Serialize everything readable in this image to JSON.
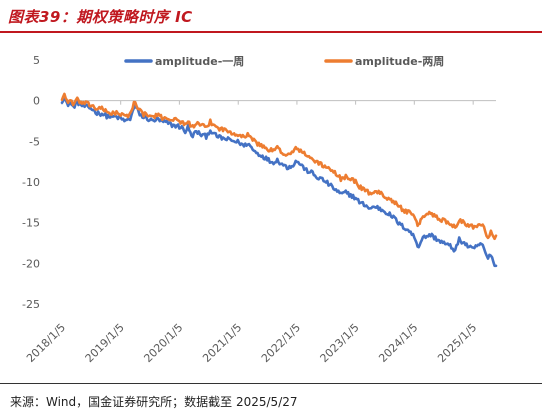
{
  "figure": {
    "title": "图表39：期权策略时序 IC",
    "source": "来源：Wind，国金证券研究所；数据截至 2025/5/27"
  },
  "colors": {
    "accent": "#c0181f",
    "series_one_week": "#4472c4",
    "series_two_week": "#ed7d31",
    "axis": "#bfbfbf",
    "tick_text": "#595959"
  },
  "chart_data": {
    "type": "line",
    "title": "",
    "xlabel": "",
    "ylabel": "",
    "grid": false,
    "legend_position": "top-right",
    "x_axis_crosses_y_at": 0,
    "ylim": [
      -25,
      5
    ],
    "yticks": [
      5,
      0,
      -5,
      -10,
      -15,
      -20,
      -25
    ],
    "xlim": [
      "2018-01-05",
      "2025-05-27"
    ],
    "xticks": [
      "2018/1/5",
      "2019/1/5",
      "2020/1/5",
      "2021/1/5",
      "2022/1/5",
      "2023/1/5",
      "2024/1/5",
      "2025/1/5"
    ],
    "xtick_dates": [
      "2018-01-05",
      "2019-01-05",
      "2020-01-05",
      "2021-01-05",
      "2022-01-05",
      "2023-01-05",
      "2024-01-05",
      "2025-01-05"
    ],
    "series": [
      {
        "name": "amplitude-一周",
        "color": "#4472c4",
        "points": [
          [
            "2018-01-05",
            0.0
          ],
          [
            "2018-01-20",
            0.5
          ],
          [
            "2018-02-05",
            -0.5
          ],
          [
            "2018-02-25",
            -0.3
          ],
          [
            "2018-03-15",
            -0.8
          ],
          [
            "2018-04-10",
            -0.2
          ],
          [
            "2018-05-10",
            -0.6
          ],
          [
            "2018-06-10",
            -0.8
          ],
          [
            "2018-07-10",
            -1.0
          ],
          [
            "2018-08-10",
            -1.5
          ],
          [
            "2018-09-10",
            -1.6
          ],
          [
            "2018-10-10",
            -1.9
          ],
          [
            "2018-11-10",
            -2.0
          ],
          [
            "2018-12-10",
            -2.0
          ],
          [
            "2019-01-05",
            -2.2
          ],
          [
            "2019-02-05",
            -2.5
          ],
          [
            "2019-03-05",
            -2.2
          ],
          [
            "2019-04-05",
            -0.5
          ],
          [
            "2019-04-25",
            -1.4
          ],
          [
            "2019-05-20",
            -2.0
          ],
          [
            "2019-06-20",
            -2.2
          ],
          [
            "2019-07-20",
            -2.5
          ],
          [
            "2019-08-20",
            -2.3
          ],
          [
            "2019-09-20",
            -2.6
          ],
          [
            "2019-10-20",
            -2.7
          ],
          [
            "2019-11-20",
            -3.0
          ],
          [
            "2019-12-20",
            -3.1
          ],
          [
            "2020-01-20",
            -3.3
          ],
          [
            "2020-02-10",
            -3.8
          ],
          [
            "2020-02-28",
            -3.2
          ],
          [
            "2020-03-20",
            -4.4
          ],
          [
            "2020-04-20",
            -3.8
          ],
          [
            "2020-05-20",
            -4.2
          ],
          [
            "2020-06-20",
            -4.4
          ],
          [
            "2020-07-15",
            -3.6
          ],
          [
            "2020-08-10",
            -4.2
          ],
          [
            "2020-09-10",
            -4.5
          ],
          [
            "2020-10-10",
            -4.7
          ],
          [
            "2020-11-10",
            -4.8
          ],
          [
            "2020-12-10",
            -5.0
          ],
          [
            "2021-01-10",
            -5.1
          ],
          [
            "2021-02-10",
            -5.6
          ],
          [
            "2021-03-05",
            -5.2
          ],
          [
            "2021-04-05",
            -6.0
          ],
          [
            "2021-05-05",
            -6.5
          ],
          [
            "2021-06-05",
            -6.8
          ],
          [
            "2021-07-05",
            -7.2
          ],
          [
            "2021-08-05",
            -7.6
          ],
          [
            "2021-09-05",
            -7.3
          ],
          [
            "2021-10-05",
            -7.8
          ],
          [
            "2021-11-05",
            -8.2
          ],
          [
            "2021-12-05",
            -8.0
          ],
          [
            "2022-01-05",
            -7.4
          ],
          [
            "2022-02-05",
            -8.0
          ],
          [
            "2022-03-05",
            -8.6
          ],
          [
            "2022-04-05",
            -8.8
          ],
          [
            "2022-05-05",
            -9.4
          ],
          [
            "2022-06-05",
            -9.6
          ],
          [
            "2022-07-05",
            -10.0
          ],
          [
            "2022-08-05",
            -10.5
          ],
          [
            "2022-09-05",
            -11.0
          ],
          [
            "2022-10-05",
            -11.5
          ],
          [
            "2022-11-05",
            -11.3
          ],
          [
            "2022-12-05",
            -11.6
          ],
          [
            "2023-01-05",
            -12.0
          ],
          [
            "2023-02-05",
            -12.6
          ],
          [
            "2023-03-05",
            -12.8
          ],
          [
            "2023-04-05",
            -13.3
          ],
          [
            "2023-05-05",
            -13.0
          ],
          [
            "2023-06-05",
            -13.3
          ],
          [
            "2023-07-05",
            -13.6
          ],
          [
            "2023-08-05",
            -14.0
          ],
          [
            "2023-09-05",
            -14.5
          ],
          [
            "2023-10-05",
            -15.2
          ],
          [
            "2023-11-05",
            -15.6
          ],
          [
            "2023-12-05",
            -16.0
          ],
          [
            "2024-01-05",
            -16.8
          ],
          [
            "2024-02-01",
            -18.0
          ],
          [
            "2024-02-20",
            -17.0
          ],
          [
            "2024-03-15",
            -16.7
          ],
          [
            "2024-04-15",
            -16.5
          ],
          [
            "2024-05-15",
            -16.9
          ],
          [
            "2024-06-15",
            -17.3
          ],
          [
            "2024-07-15",
            -17.6
          ],
          [
            "2024-08-15",
            -17.9
          ],
          [
            "2024-09-15",
            -18.4
          ],
          [
            "2024-10-10",
            -17.1
          ],
          [
            "2024-11-10",
            -17.5
          ],
          [
            "2024-12-10",
            -18.0
          ],
          [
            "2025-01-05",
            -18.3
          ],
          [
            "2025-02-05",
            -17.7
          ],
          [
            "2025-03-05",
            -17.8
          ],
          [
            "2025-04-07",
            -19.5
          ],
          [
            "2025-04-25",
            -18.8
          ],
          [
            "2025-05-10",
            -19.8
          ],
          [
            "2025-05-27",
            -20.3
          ]
        ]
      },
      {
        "name": "amplitude-两周",
        "color": "#ed7d31",
        "points": [
          [
            "2018-01-05",
            0.2
          ],
          [
            "2018-01-20",
            0.8
          ],
          [
            "2018-02-05",
            -0.1
          ],
          [
            "2018-02-25",
            0.1
          ],
          [
            "2018-03-15",
            -0.5
          ],
          [
            "2018-04-10",
            0.1
          ],
          [
            "2018-05-10",
            -0.3
          ],
          [
            "2018-06-10",
            -0.4
          ],
          [
            "2018-07-10",
            -0.6
          ],
          [
            "2018-08-10",
            -1.0
          ],
          [
            "2018-09-10",
            -1.0
          ],
          [
            "2018-10-10",
            -1.4
          ],
          [
            "2018-11-10",
            -1.5
          ],
          [
            "2018-12-10",
            -1.5
          ],
          [
            "2019-01-05",
            -1.7
          ],
          [
            "2019-02-05",
            -2.0
          ],
          [
            "2019-03-05",
            -1.6
          ],
          [
            "2019-04-05",
            0.0
          ],
          [
            "2019-04-25",
            -1.0
          ],
          [
            "2019-05-20",
            -1.6
          ],
          [
            "2019-06-20",
            -1.8
          ],
          [
            "2019-07-20",
            -2.0
          ],
          [
            "2019-08-20",
            -1.8
          ],
          [
            "2019-09-20",
            -2.1
          ],
          [
            "2019-10-20",
            -2.1
          ],
          [
            "2019-11-20",
            -2.3
          ],
          [
            "2019-12-20",
            -2.4
          ],
          [
            "2020-01-20",
            -2.6
          ],
          [
            "2020-02-10",
            -3.0
          ],
          [
            "2020-02-28",
            -2.3
          ],
          [
            "2020-03-20",
            -3.4
          ],
          [
            "2020-04-20",
            -2.8
          ],
          [
            "2020-05-20",
            -3.1
          ],
          [
            "2020-06-20",
            -3.3
          ],
          [
            "2020-07-15",
            -2.6
          ],
          [
            "2020-08-10",
            -3.1
          ],
          [
            "2020-09-10",
            -3.4
          ],
          [
            "2020-10-10",
            -3.6
          ],
          [
            "2020-11-10",
            -3.8
          ],
          [
            "2020-12-10",
            -4.0
          ],
          [
            "2021-01-10",
            -4.1
          ],
          [
            "2021-02-10",
            -4.6
          ],
          [
            "2021-03-05",
            -4.0
          ],
          [
            "2021-04-05",
            -4.8
          ],
          [
            "2021-05-05",
            -5.3
          ],
          [
            "2021-06-05",
            -5.6
          ],
          [
            "2021-07-05",
            -5.9
          ],
          [
            "2021-08-05",
            -6.2
          ],
          [
            "2021-09-05",
            -5.8
          ],
          [
            "2021-10-05",
            -6.3
          ],
          [
            "2021-11-05",
            -6.8
          ],
          [
            "2021-12-05",
            -6.4
          ],
          [
            "2022-01-05",
            -5.8
          ],
          [
            "2022-02-05",
            -6.3
          ],
          [
            "2022-03-05",
            -6.8
          ],
          [
            "2022-04-05",
            -7.0
          ],
          [
            "2022-05-05",
            -7.6
          ],
          [
            "2022-06-05",
            -7.8
          ],
          [
            "2022-07-05",
            -8.2
          ],
          [
            "2022-08-05",
            -8.6
          ],
          [
            "2022-09-05",
            -9.0
          ],
          [
            "2022-10-05",
            -9.6
          ],
          [
            "2022-11-05",
            -9.3
          ],
          [
            "2022-12-05",
            -9.6
          ],
          [
            "2023-01-05",
            -10.0
          ],
          [
            "2023-02-05",
            -10.7
          ],
          [
            "2023-03-05",
            -11.0
          ],
          [
            "2023-04-05",
            -11.4
          ],
          [
            "2023-05-05",
            -11.1
          ],
          [
            "2023-06-05",
            -11.4
          ],
          [
            "2023-07-05",
            -11.7
          ],
          [
            "2023-08-05",
            -12.1
          ],
          [
            "2023-09-05",
            -12.5
          ],
          [
            "2023-10-05",
            -13.1
          ],
          [
            "2023-11-05",
            -13.5
          ],
          [
            "2023-12-05",
            -13.8
          ],
          [
            "2024-01-05",
            -14.4
          ],
          [
            "2024-02-01",
            -15.4
          ],
          [
            "2024-02-20",
            -14.4
          ],
          [
            "2024-03-15",
            -14.0
          ],
          [
            "2024-04-15",
            -13.8
          ],
          [
            "2024-05-15",
            -14.2
          ],
          [
            "2024-06-15",
            -14.6
          ],
          [
            "2024-07-15",
            -14.8
          ],
          [
            "2024-08-15",
            -15.1
          ],
          [
            "2024-09-15",
            -15.5
          ],
          [
            "2024-10-10",
            -14.6
          ],
          [
            "2024-11-10",
            -15.0
          ],
          [
            "2024-12-10",
            -15.4
          ],
          [
            "2025-01-05",
            -15.5
          ],
          [
            "2025-02-05",
            -15.2
          ],
          [
            "2025-03-05",
            -15.1
          ],
          [
            "2025-04-07",
            -16.8
          ],
          [
            "2025-04-25",
            -16.0
          ],
          [
            "2025-05-10",
            -16.9
          ],
          [
            "2025-05-27",
            -16.6
          ]
        ]
      }
    ]
  }
}
